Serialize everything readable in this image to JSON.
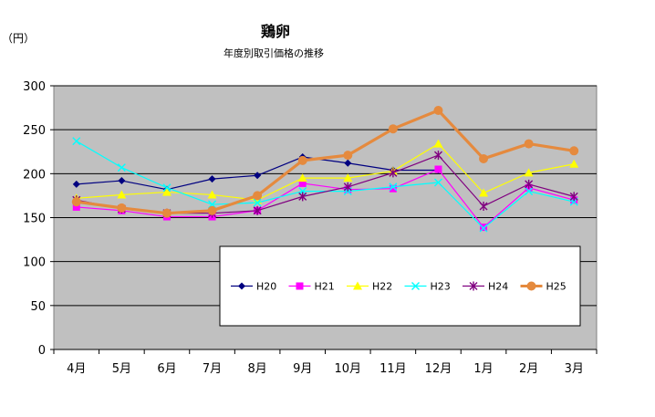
{
  "chart_data": {
    "type": "line",
    "title": "鶏卵",
    "subtitle": "年度別取引価格の推移",
    "unit_label": "（円）",
    "categories": [
      "4月",
      "5月",
      "6月",
      "7月",
      "8月",
      "9月",
      "10月",
      "11月",
      "12月",
      "1月",
      "2月",
      "3月"
    ],
    "y_ticks": [
      "0",
      "50",
      "100",
      "150",
      "200",
      "250",
      "300"
    ],
    "ylim": [
      0,
      300
    ],
    "grid": true,
    "legend_position": "bottom-right-inside",
    "series": [
      {
        "name": "H20",
        "color": "#000080",
        "marker": "diamond",
        "values": [
          188,
          192,
          182,
          194,
          198,
          219,
          212,
          204,
          204,
          null,
          null,
          null
        ]
      },
      {
        "name": "H21",
        "color": "#ff00ff",
        "marker": "square",
        "values": [
          162,
          158,
          151,
          151,
          158,
          189,
          182,
          183,
          205,
          139,
          184,
          170
        ]
      },
      {
        "name": "H22",
        "color": "#ffff00",
        "marker": "triangle",
        "values": [
          172,
          176,
          179,
          176,
          170,
          195,
          195,
          203,
          234,
          178,
          201,
          211
        ]
      },
      {
        "name": "H23",
        "color": "#00ffff",
        "marker": "x",
        "values": [
          237,
          207,
          184,
          165,
          167,
          180,
          180,
          185,
          190,
          138,
          180,
          168
        ]
      },
      {
        "name": "H24",
        "color": "#800080",
        "marker": "star",
        "values": [
          170,
          160,
          155,
          155,
          158,
          174,
          185,
          201,
          221,
          163,
          188,
          174
        ]
      },
      {
        "name": "H25",
        "color": "#e58a3e",
        "marker": "circle",
        "thick": true,
        "values": [
          168,
          161,
          155,
          158,
          175,
          215,
          221,
          251,
          272,
          217,
          234,
          226
        ]
      }
    ]
  }
}
